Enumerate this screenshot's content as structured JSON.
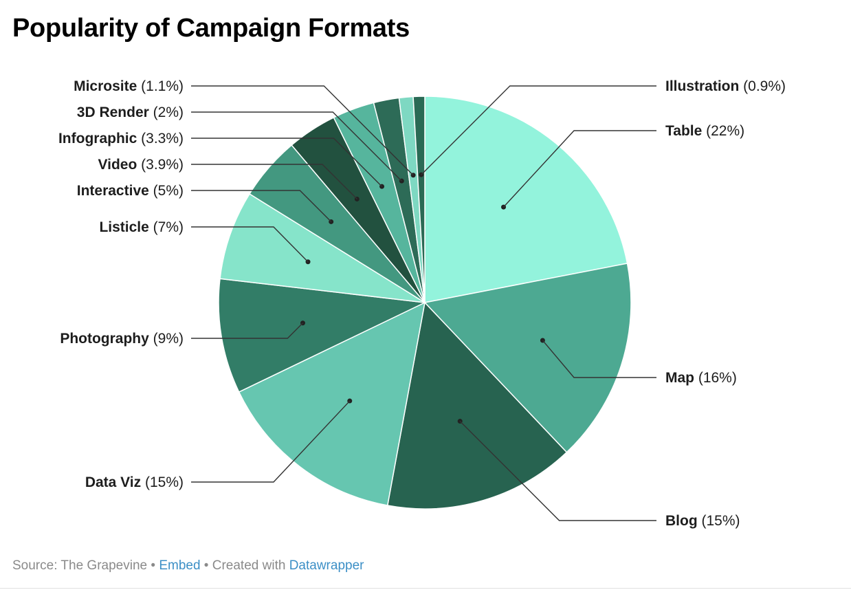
{
  "chart_data": {
    "type": "pie",
    "title": "Popularity of Campaign Formats",
    "start_angle_deg": 0,
    "direction": "clockwise",
    "slices": [
      {
        "label": "Table",
        "value": 22,
        "display": "22%",
        "color": "#93f3dc"
      },
      {
        "label": "Map",
        "value": 16,
        "display": "16%",
        "color": "#4da992"
      },
      {
        "label": "Blog",
        "value": 15,
        "display": "15%",
        "color": "#276350"
      },
      {
        "label": "Data Viz",
        "value": 15,
        "display": "15%",
        "color": "#66c6b0"
      },
      {
        "label": "Photography",
        "value": 9,
        "display": "9%",
        "color": "#327d67"
      },
      {
        "label": "Listicle",
        "value": 7,
        "display": "7%",
        "color": "#86e4ca"
      },
      {
        "label": "Interactive",
        "value": 5,
        "display": "5%",
        "color": "#439880"
      },
      {
        "label": "Video",
        "value": 3.9,
        "display": "3.9%",
        "color": "#22513f"
      },
      {
        "label": "Infographic",
        "value": 3.3,
        "display": "3.3%",
        "color": "#56b59d"
      },
      {
        "label": "3D Render",
        "value": 2,
        "display": "2%",
        "color": "#2d6b57"
      },
      {
        "label": "Microsite",
        "value": 1.1,
        "display": "1.1%",
        "color": "#7ed8c2"
      },
      {
        "label": "Illustration",
        "value": 0.9,
        "display": "0.9%",
        "color": "#2a6a55"
      }
    ]
  },
  "footer": {
    "source": "Source: The Grapevine",
    "sep": " • ",
    "embed": "Embed",
    "created_with": "Created with",
    "datawrapper": "Datawrapper"
  }
}
